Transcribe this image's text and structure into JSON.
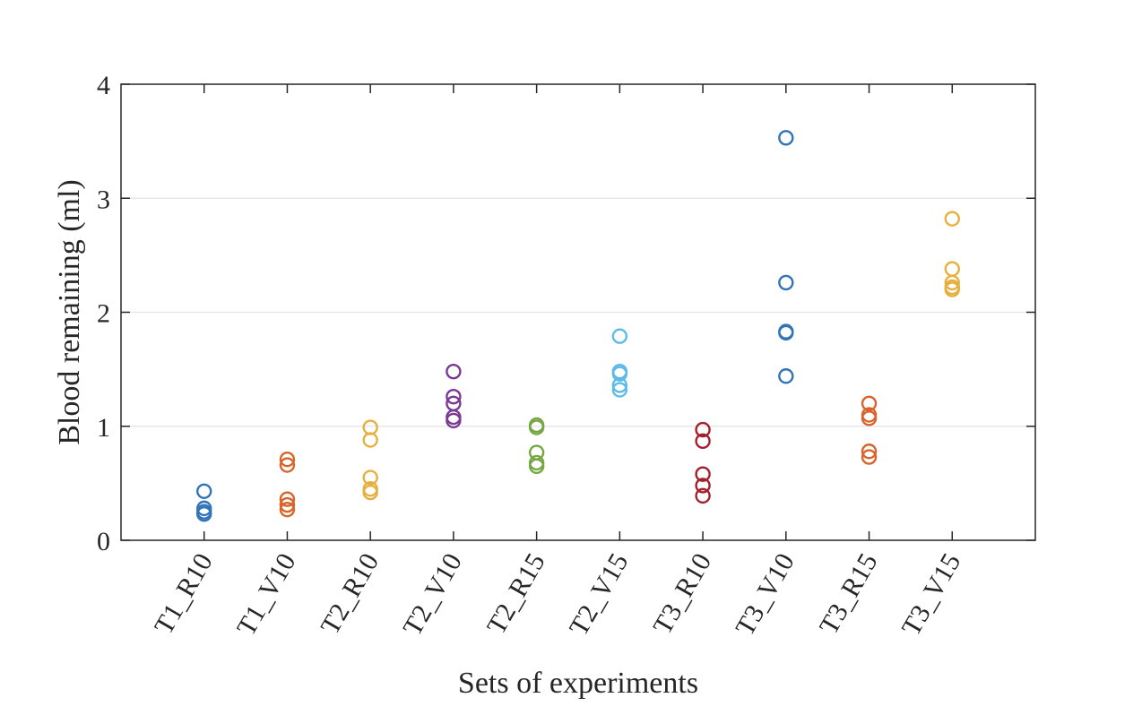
{
  "chart_data": {
    "type": "scatter",
    "xlabel": "Sets of experiments",
    "ylabel": "Blood remaining (ml)",
    "ylim": [
      0,
      4
    ],
    "yticks": [
      "0",
      "1",
      "2",
      "3",
      "4"
    ],
    "grid": "horizontal",
    "categories": [
      "T1_R10",
      "T1_V10",
      "T2_R10",
      "T2_V10",
      "T2_R15",
      "T2_V15",
      "T3_R10",
      "T3_V10",
      "T3_R15",
      "T3_V15"
    ],
    "series": [
      {
        "category": "T1_R10",
        "color": "#3274b8",
        "values": [
          0.43,
          0.28,
          0.25,
          0.23
        ]
      },
      {
        "category": "T1_V10",
        "color": "#d9642b",
        "values": [
          0.71,
          0.66,
          0.36,
          0.31,
          0.27
        ]
      },
      {
        "category": "T2_R10",
        "color": "#e6b040",
        "values": [
          0.99,
          0.88,
          0.55,
          0.45,
          0.42
        ]
      },
      {
        "category": "T2_V10",
        "color": "#7a3a94",
        "values": [
          1.48,
          1.26,
          1.2,
          1.08,
          1.05
        ]
      },
      {
        "category": "T2_R15",
        "color": "#75a845",
        "values": [
          1.01,
          0.99,
          0.77,
          0.68,
          0.65
        ]
      },
      {
        "category": "T2_V15",
        "color": "#5ebbe8",
        "values": [
          1.79,
          1.48,
          1.46,
          1.36,
          1.32
        ]
      },
      {
        "category": "T3_R10",
        "color": "#a3202f",
        "values": [
          0.97,
          0.87,
          0.58,
          0.48,
          0.39
        ]
      },
      {
        "category": "T3_V10",
        "color": "#3274b8",
        "values": [
          3.53,
          2.26,
          1.83,
          1.82,
          1.44
        ]
      },
      {
        "category": "T3_R15",
        "color": "#d9642b",
        "values": [
          1.2,
          1.1,
          1.07,
          0.78,
          0.73
        ]
      },
      {
        "category": "T3_V15",
        "color": "#e6b040",
        "values": [
          2.82,
          2.38,
          2.26,
          2.22,
          2.2
        ]
      }
    ]
  }
}
